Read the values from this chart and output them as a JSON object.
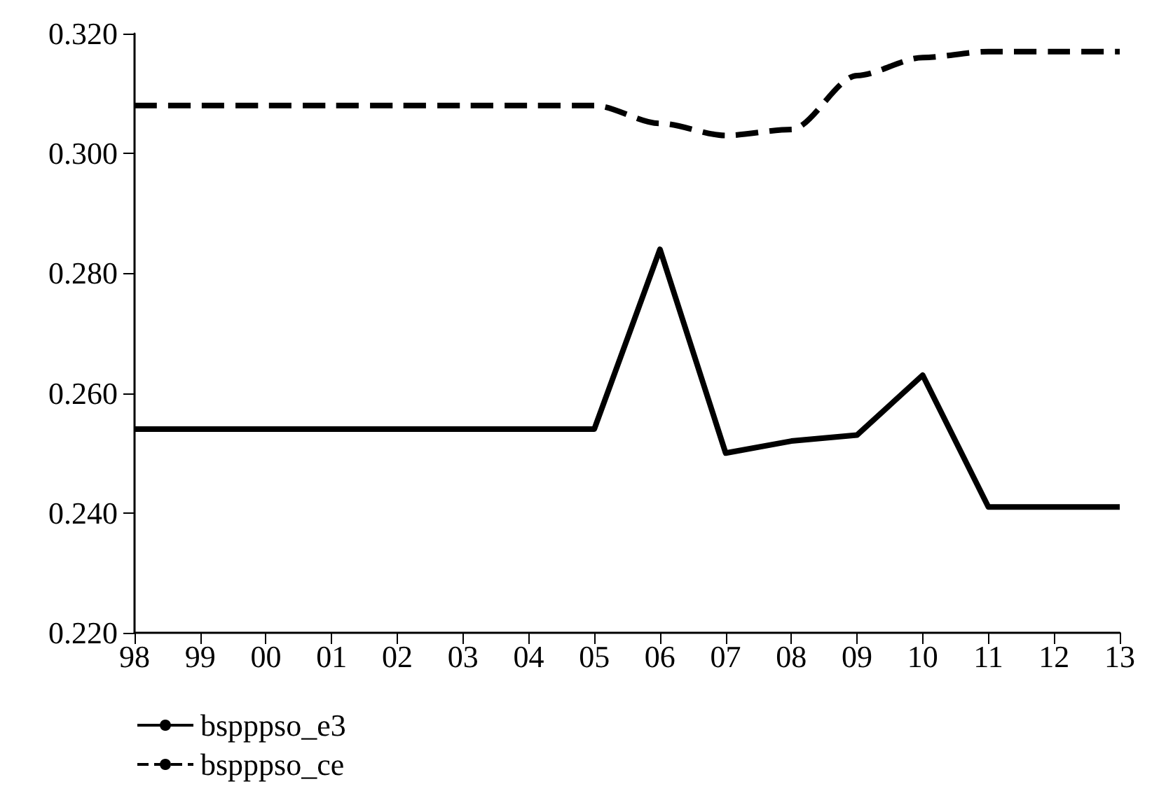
{
  "chart_data": {
    "type": "line",
    "categories": [
      "98",
      "99",
      "00",
      "01",
      "02",
      "03",
      "04",
      "05",
      "06",
      "07",
      "08",
      "09",
      "10",
      "11",
      "12",
      "13"
    ],
    "series": [
      {
        "name": "bspppso_e3",
        "color": "#000000",
        "line_style": "solid",
        "values": [
          0.254,
          0.254,
          0.254,
          0.254,
          0.254,
          0.254,
          0.254,
          0.254,
          0.284,
          0.25,
          0.252,
          0.253,
          0.263,
          0.241,
          0.241,
          0.241
        ]
      },
      {
        "name": "bspppso_ce",
        "color": "#000000",
        "line_style": "dashed",
        "values": [
          0.308,
          0.308,
          0.308,
          0.308,
          0.308,
          0.308,
          0.308,
          0.308,
          0.305,
          0.303,
          0.304,
          0.313,
          0.316,
          0.317,
          0.317,
          0.317
        ]
      }
    ],
    "ylim": [
      0.22,
      0.32
    ],
    "yticks": [
      {
        "value": 0.22,
        "label": "0.220"
      },
      {
        "value": 0.24,
        "label": "0.240"
      },
      {
        "value": 0.26,
        "label": "0.260"
      },
      {
        "value": 0.28,
        "label": "0.280"
      },
      {
        "value": 0.3,
        "label": "0.300"
      },
      {
        "value": 0.32,
        "label": "0.320"
      }
    ],
    "grid": false,
    "legend": "bottom left",
    "marker": "none"
  }
}
